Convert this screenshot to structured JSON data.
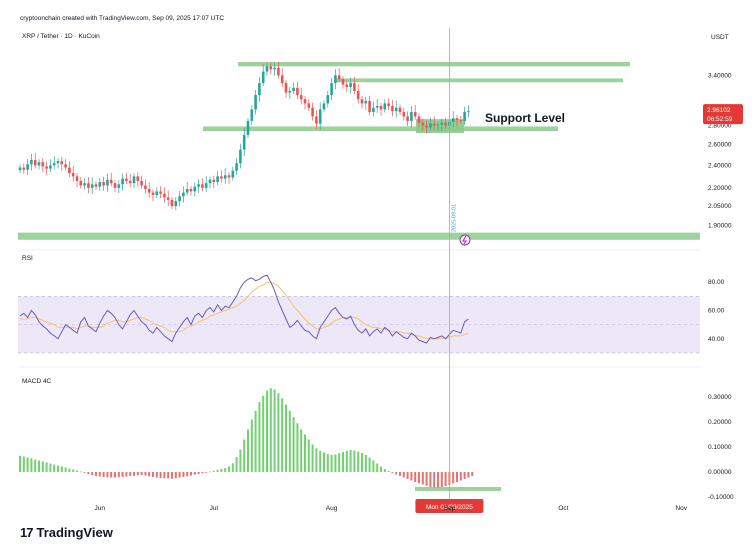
{
  "header": {
    "credit": "cryptoonchain created with TradingView.com, Sep 09, 2025 17:07 UTC",
    "symbol": "XRP / Tether · 1D · KuCoin",
    "currency": "USDT"
  },
  "price_tag": {
    "price": "2.96102",
    "countdown": "06:52:59"
  },
  "annotation": {
    "support_label": "Support Level"
  },
  "panes": {
    "rsi_label": "RSI",
    "macd_label": "MACD 4C"
  },
  "cursor": {
    "date_label": "Mon 01/09/2025",
    "vertical_date": "2025-09-01"
  },
  "brand": {
    "logo_text": "TradingView",
    "logo_mark": "17"
  },
  "colors": {
    "up": "#26a69a",
    "down": "#ef5350",
    "zone": "#8cc98c",
    "rsi_line": "#6b5bb5",
    "rsi_ma": "#f5c36b",
    "rsi_band": "#ede8f8",
    "cursor": "#f28b82",
    "price_tag": "#e53935",
    "macd_up": "#70d270",
    "macd_down": "#e57373"
  },
  "chart_data": [
    {
      "type": "candlestick",
      "title": "XRP / Tether · 1D · KuCoin",
      "x_ticks": [
        "Jun",
        "Jul",
        "Aug",
        "Sep",
        "Oct",
        "Nov"
      ],
      "x_tick_dates": [
        "2025-06-01",
        "2025-07-01",
        "2025-08-01",
        "2025-09-01",
        "2025-10-01",
        "2025-11-01"
      ],
      "y_ticks": [
        3.4,
        2.8,
        2.6,
        2.4,
        2.2,
        2.05,
        1.9
      ],
      "y_tick_labels": [
        "3.40000",
        "2.80000",
        "2.60000",
        "2.40000",
        "2.20000",
        "2.05000",
        "1.90000"
      ],
      "price_scale": "log",
      "closes_start": "2025-05-11",
      "closes_end": "2025-09-09",
      "closes": [
        2.38,
        2.36,
        2.41,
        2.45,
        2.4,
        2.43,
        2.39,
        2.37,
        2.4,
        2.42,
        2.44,
        2.41,
        2.38,
        2.33,
        2.3,
        2.26,
        2.22,
        2.24,
        2.2,
        2.23,
        2.21,
        2.25,
        2.22,
        2.27,
        2.24,
        2.2,
        2.23,
        2.28,
        2.26,
        2.24,
        2.3,
        2.26,
        2.22,
        2.19,
        2.16,
        2.14,
        2.17,
        2.15,
        2.12,
        2.1,
        2.05,
        2.09,
        2.13,
        2.16,
        2.19,
        2.17,
        2.21,
        2.23,
        2.2,
        2.24,
        2.27,
        2.25,
        2.3,
        2.28,
        2.31,
        2.29,
        2.35,
        2.42,
        2.55,
        2.7,
        2.85,
        2.98,
        3.15,
        3.3,
        3.45,
        3.52,
        3.48,
        3.5,
        3.4,
        3.3,
        3.18,
        3.2,
        3.24,
        3.15,
        3.1,
        3.05,
        3.0,
        2.9,
        2.82,
        2.98,
        3.05,
        3.15,
        3.3,
        3.4,
        3.35,
        3.28,
        3.25,
        3.3,
        3.2,
        3.1,
        3.05,
        3.08,
        2.95,
        3.0,
        3.02,
        2.98,
        3.05,
        3.02,
        2.96,
        3.0,
        2.95,
        2.9,
        2.85,
        2.95,
        2.9,
        2.83,
        2.8,
        2.78,
        2.82,
        2.8,
        2.81,
        2.83,
        2.8,
        2.84,
        2.88,
        2.86,
        2.85,
        2.95,
        2.96
      ],
      "support_zones": [
        {
          "name": "Support Level",
          "low": 2.74,
          "high": 2.79
        },
        {
          "low": 3.52,
          "high": 3.58
        },
        {
          "low": 3.31,
          "high": 3.36
        },
        {
          "low": 1.8,
          "high": 1.85
        }
      ],
      "last_price": 2.96102
    },
    {
      "type": "line",
      "title": "RSI",
      "y_ticks": [
        80,
        60,
        40
      ],
      "y_tick_labels": [
        "80.00",
        "60.00",
        "40.00"
      ],
      "band": [
        30,
        70
      ],
      "series": [
        {
          "values": [
            56,
            58,
            55,
            60,
            57,
            52,
            49,
            47,
            44,
            42,
            40,
            45,
            50,
            48,
            46,
            44,
            52,
            55,
            49,
            47,
            45,
            51,
            56,
            60,
            58,
            55,
            50,
            47,
            52,
            57,
            60,
            56,
            52,
            50,
            46,
            44,
            48,
            45,
            42,
            40,
            38,
            44,
            48,
            52,
            55,
            50,
            56,
            58,
            55,
            60,
            62,
            59,
            64,
            60,
            63,
            62,
            66,
            70,
            76,
            80,
            82,
            83,
            81,
            82,
            84,
            85,
            80,
            74,
            66,
            60,
            54,
            48,
            50,
            53,
            49,
            46,
            45,
            42,
            40,
            48,
            52,
            56,
            60,
            62,
            58,
            55,
            54,
            56,
            50,
            46,
            44,
            47,
            42,
            45,
            47,
            44,
            48,
            46,
            42,
            45,
            43,
            41,
            40,
            44,
            42,
            39,
            38,
            37,
            41,
            40,
            41,
            42,
            40,
            43,
            46,
            45,
            44,
            52,
            54
          ]
        },
        {
          "values": [
            54,
            54,
            54,
            55,
            55,
            54,
            53,
            52,
            51,
            50,
            48,
            48,
            48,
            48,
            48,
            47,
            48,
            49,
            49,
            48,
            48,
            48,
            49,
            51,
            52,
            53,
            53,
            52,
            52,
            53,
            54,
            55,
            55,
            54,
            53,
            51,
            50,
            49,
            48,
            46,
            45,
            45,
            45,
            46,
            48,
            49,
            50,
            52,
            53,
            54,
            56,
            57,
            58,
            59,
            60,
            61,
            62,
            63,
            65,
            67,
            70,
            73,
            75,
            77,
            78,
            80,
            80,
            79,
            77,
            74,
            71,
            67,
            63,
            60,
            57,
            54,
            51,
            49,
            47,
            47,
            48,
            49,
            51,
            53,
            54,
            55,
            55,
            55,
            55,
            54,
            52,
            50,
            49,
            48,
            48,
            47,
            47,
            46,
            45,
            45,
            45,
            44,
            44,
            43,
            42,
            42,
            41,
            40,
            40,
            40,
            40,
            40,
            41,
            41,
            42,
            42,
            42,
            43,
            44
          ]
        }
      ],
      "support_zones": [
        {
          "low": 36,
          "high": 40
        }
      ]
    },
    {
      "type": "bar",
      "title": "MACD 4C",
      "y_ticks": [
        0.3,
        0.2,
        0.1,
        0.0,
        -0.1
      ],
      "y_tick_labels": [
        "0.30000",
        "0.20000",
        "0.10000",
        "0.00000",
        "-0.10000"
      ],
      "series": [
        {
          "values": [
            0.065,
            0.062,
            0.058,
            0.055,
            0.05,
            0.046,
            0.042,
            0.038,
            0.034,
            0.03,
            0.026,
            0.022,
            0.018,
            0.014,
            0.01,
            0.006,
            0.002,
            -0.003,
            -0.008,
            -0.013,
            -0.016,
            -0.018,
            -0.02,
            -0.021,
            -0.022,
            -0.022,
            -0.021,
            -0.02,
            -0.018,
            -0.016,
            -0.015,
            -0.013,
            -0.012,
            -0.014,
            -0.017,
            -0.02,
            -0.022,
            -0.024,
            -0.025,
            -0.026,
            -0.027,
            -0.025,
            -0.022,
            -0.02,
            -0.017,
            -0.014,
            -0.011,
            -0.008,
            -0.005,
            -0.002,
            0.002,
            0.005,
            0.009,
            0.012,
            0.016,
            0.022,
            0.035,
            0.06,
            0.09,
            0.13,
            0.17,
            0.21,
            0.245,
            0.28,
            0.305,
            0.325,
            0.335,
            0.33,
            0.315,
            0.295,
            0.27,
            0.245,
            0.22,
            0.195,
            0.17,
            0.15,
            0.13,
            0.11,
            0.095,
            0.085,
            0.078,
            0.072,
            0.068,
            0.07,
            0.075,
            0.08,
            0.085,
            0.088,
            0.086,
            0.082,
            0.076,
            0.068,
            0.058,
            0.046,
            0.034,
            0.022,
            0.012,
            0.004,
            -0.004,
            -0.01,
            -0.016,
            -0.022,
            -0.028,
            -0.034,
            -0.04,
            -0.045,
            -0.05,
            -0.055,
            -0.06,
            -0.062,
            -0.062,
            -0.06,
            -0.056,
            -0.052,
            -0.046,
            -0.04,
            -0.034,
            -0.028,
            -0.022,
            -0.016
          ]
        }
      ]
    }
  ]
}
